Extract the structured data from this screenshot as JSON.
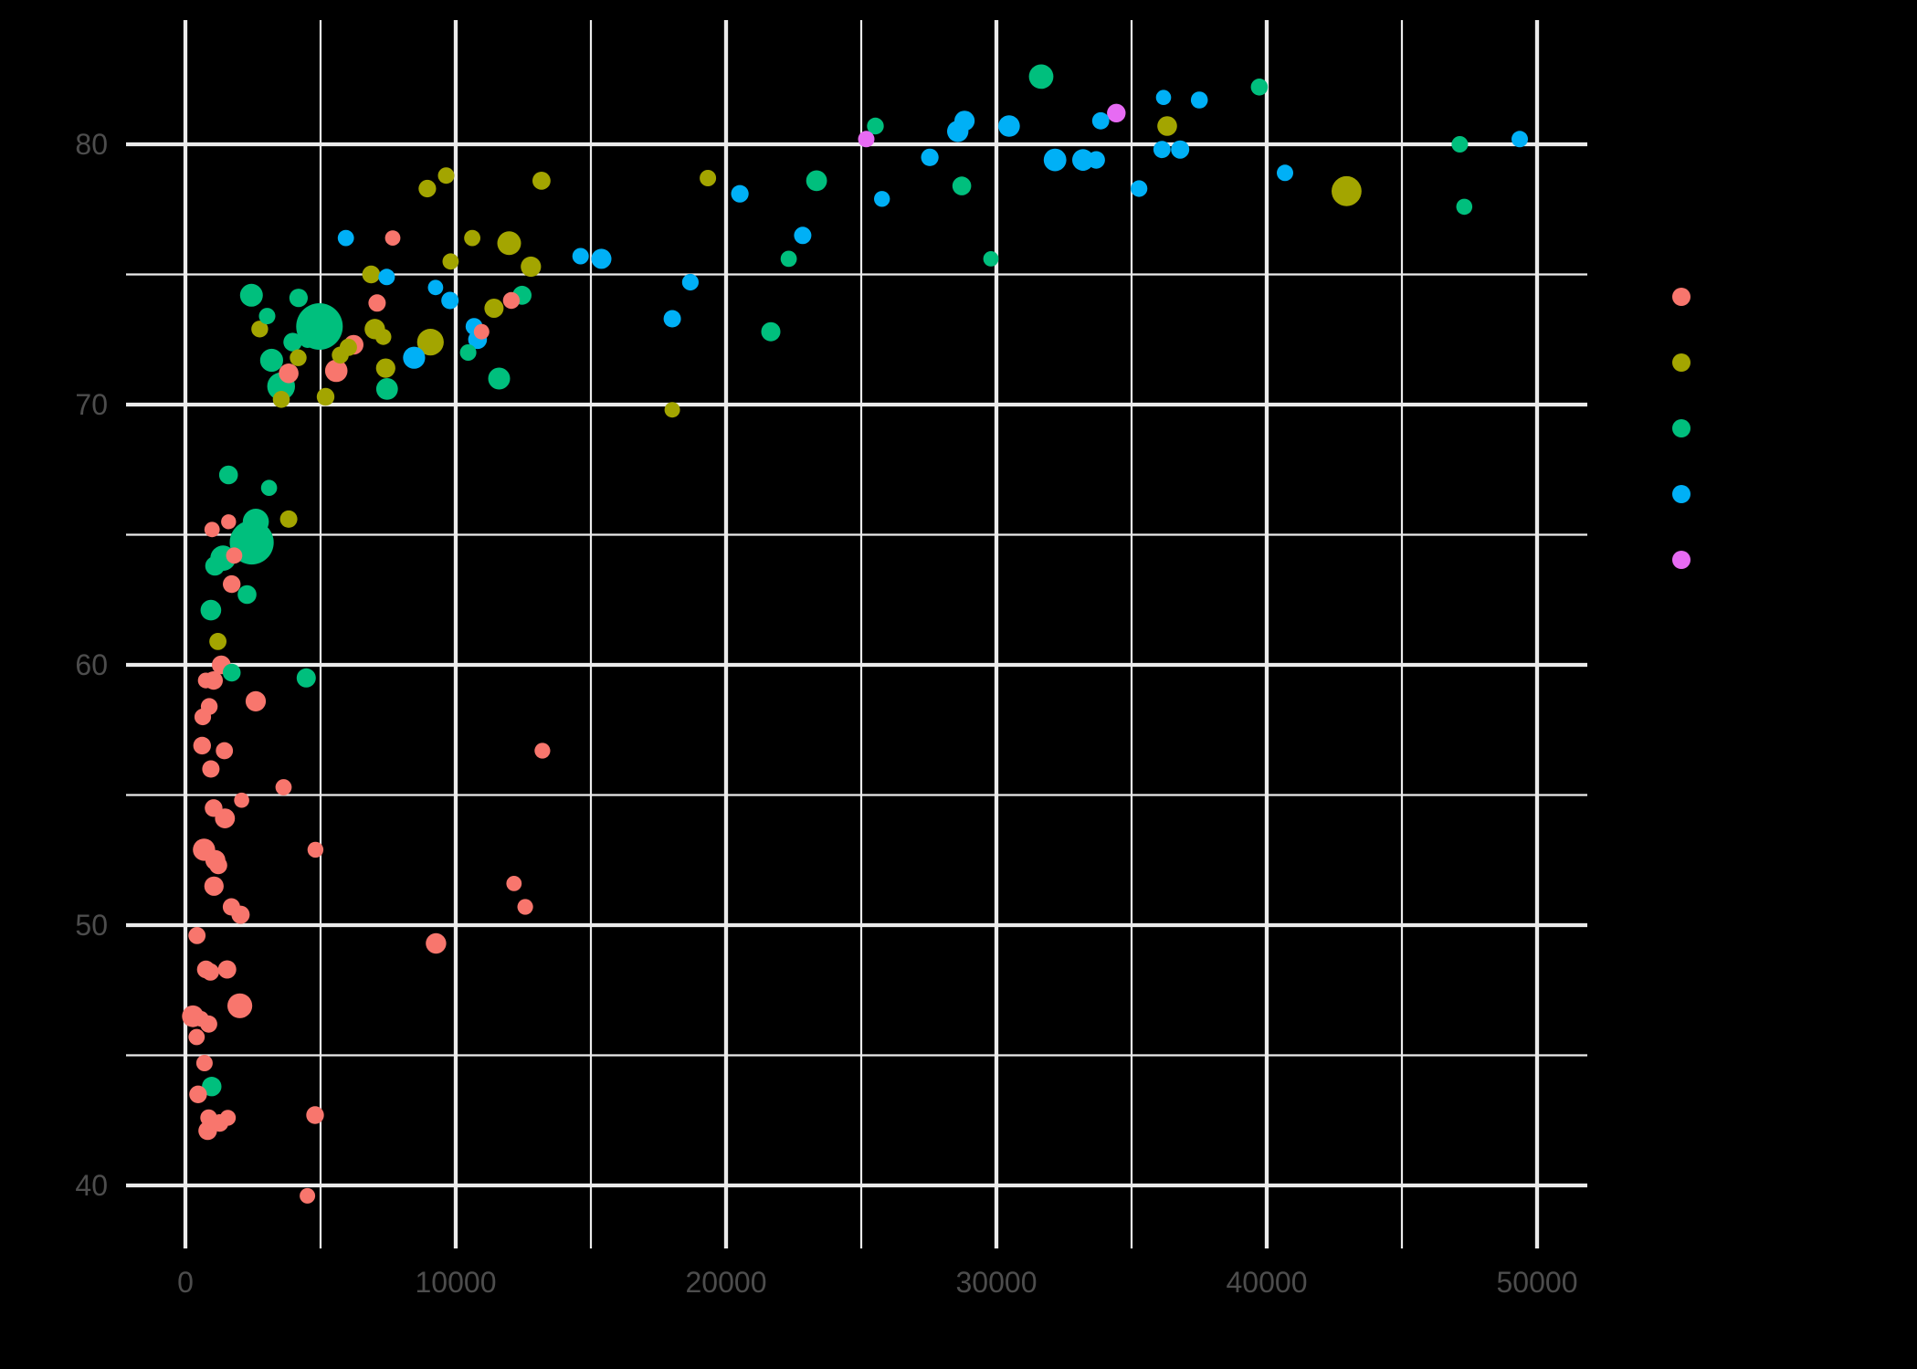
{
  "chart_data": {
    "type": "scatter",
    "title": "",
    "xlabel": "",
    "ylabel": "",
    "xlim": [
      -2200,
      51860
    ],
    "ylim": [
      37.5,
      84.8
    ],
    "x_ticks": [
      0,
      10000,
      20000,
      30000,
      40000,
      50000
    ],
    "x_tick_labels": [
      "0",
      "10000",
      "20000",
      "30000",
      "40000",
      "50000"
    ],
    "y_ticks": [
      40,
      50,
      60,
      70,
      80
    ],
    "y_tick_labels": [
      "40",
      "50",
      "60",
      "70",
      "80"
    ],
    "grid": true,
    "background": "#000000",
    "legend": {
      "position": "right",
      "title": "",
      "entries": [
        {
          "key": "Africa",
          "label": "",
          "color": "#F8766D"
        },
        {
          "key": "Americas",
          "label": "",
          "color": "#A3A500"
        },
        {
          "key": "Asia",
          "label": "",
          "color": "#00BF7D"
        },
        {
          "key": "Europe",
          "label": "",
          "color": "#00B0F6"
        },
        {
          "key": "Oceania",
          "label": "",
          "color": "#E76BF3"
        }
      ]
    },
    "encoding": {
      "x": "gdpPercap",
      "y": "lifeExp",
      "color": "continent",
      "size": "pop"
    },
    "points": [
      [
        "Asia",
        974.6,
        43.8,
        31.9
      ],
      [
        "Europe",
        5937.0,
        76.4,
        3.6
      ],
      [
        "Africa",
        6223.4,
        72.3,
        33.3
      ],
      [
        "Africa",
        4797.2,
        42.7,
        12.4
      ],
      [
        "Americas",
        12779.4,
        75.3,
        40.3
      ],
      [
        "Oceania",
        34435.4,
        81.2,
        20.4
      ],
      [
        "Europe",
        36126.5,
        79.8,
        8.2
      ],
      [
        "Asia",
        29796.0,
        75.6,
        0.7
      ],
      [
        "Asia",
        1391.3,
        64.1,
        150.4
      ],
      [
        "Europe",
        33692.6,
        79.4,
        10.4
      ],
      [
        "Africa",
        1441.3,
        56.7,
        8.1
      ],
      [
        "Americas",
        3822.1,
        65.6,
        9.1
      ],
      [
        "Europe",
        7446.3,
        74.9,
        4.6
      ],
      [
        "Africa",
        12569.9,
        50.7,
        1.6
      ],
      [
        "Americas",
        9065.8,
        72.4,
        190.0
      ],
      [
        "Europe",
        10680.2,
        73.0,
        7.3
      ],
      [
        "Africa",
        1217.0,
        52.3,
        14.3
      ],
      [
        "Africa",
        430.1,
        49.6,
        8.4
      ],
      [
        "Asia",
        1713.8,
        59.7,
        14.1
      ],
      [
        "Africa",
        2042.1,
        50.4,
        17.7
      ],
      [
        "Americas",
        36319.2,
        80.7,
        33.4
      ],
      [
        "Africa",
        706.0,
        44.7,
        4.4
      ],
      [
        "Africa",
        1704.1,
        50.7,
        10.2
      ],
      [
        "Americas",
        13171.6,
        78.6,
        16.3
      ],
      [
        "Asia",
        4959.1,
        73.0,
        1318.7
      ],
      [
        "Americas",
        7006.6,
        72.9,
        44.2
      ],
      [
        "Africa",
        986.1,
        65.2,
        0.7
      ],
      [
        "Africa",
        277.6,
        46.5,
        64.6
      ],
      [
        "Africa",
        3632.6,
        55.3,
        3.8
      ],
      [
        "Americas",
        9645.1,
        78.8,
        4.1
      ],
      [
        "Africa",
        1544.8,
        48.3,
        18.0
      ],
      [
        "Europe",
        14619.2,
        75.7,
        4.5
      ],
      [
        "Americas",
        8948.1,
        78.3,
        11.4
      ],
      [
        "Europe",
        22833.3,
        76.5,
        10.2
      ],
      [
        "Europe",
        35278.4,
        78.3,
        5.5
      ],
      [
        "Africa",
        2082.5,
        54.8,
        0.5
      ],
      [
        "Americas",
        6025.4,
        72.2,
        9.3
      ],
      [
        "Americas",
        6873.3,
        75.0,
        13.8
      ],
      [
        "Africa",
        5581.2,
        71.3,
        80.3
      ],
      [
        "Americas",
        5728.4,
        71.9,
        6.9
      ],
      [
        "Africa",
        12154.1,
        51.6,
        0.6
      ],
      [
        "Africa",
        641.4,
        58.0,
        4.9
      ],
      [
        "Africa",
        690.8,
        52.9,
        76.5
      ],
      [
        "Europe",
        33207.1,
        79.3,
        5.2
      ],
      [
        "Europe",
        30470.0,
        80.7,
        61.1
      ],
      [
        "Africa",
        13206.5,
        56.7,
        1.5
      ],
      [
        "Africa",
        752.7,
        59.4,
        1.7
      ],
      [
        "Europe",
        32170.4,
        79.4,
        82.4
      ],
      [
        "Africa",
        1327.6,
        60.0,
        22.9
      ],
      [
        "Europe",
        27538.4,
        79.5,
        10.7
      ],
      [
        "Americas",
        5186.1,
        70.3,
        12.6
      ],
      [
        "Africa",
        942.7,
        56.0,
        9.9
      ],
      [
        "Africa",
        579.2,
        46.4,
        1.5
      ],
      [
        "Americas",
        1201.6,
        60.9,
        8.5
      ],
      [
        "Americas",
        3548.3,
        70.2,
        7.5
      ],
      [
        "Asia",
        39724.98,
        82.2,
        7.0
      ],
      [
        "Europe",
        18008.9,
        73.3,
        10.0
      ],
      [
        "Europe",
        36181.0,
        81.8,
        0.3
      ],
      [
        "Asia",
        2452.2,
        64.7,
        1110.4
      ],
      [
        "Asia",
        3540.7,
        70.7,
        223.5
      ],
      [
        "Asia",
        11605.7,
        71.0,
        69.5
      ],
      [
        "Asia",
        4471.1,
        59.5,
        27.5
      ],
      [
        "Europe",
        40676.0,
        78.9,
        4.1
      ],
      [
        "Asia",
        25523.3,
        80.7,
        6.4
      ],
      [
        "Europe",
        28569.7,
        80.5,
        58.1
      ],
      [
        "Americas",
        7320.9,
        72.6,
        2.8
      ],
      [
        "Asia",
        31656.1,
        82.6,
        127.5
      ],
      [
        "Asia",
        4519.5,
        72.5,
        6.1
      ],
      [
        "Africa",
        1463.2,
        54.1,
        35.6
      ],
      [
        "Asia",
        1593.1,
        67.3,
        23.3
      ],
      [
        "Asia",
        23348.1,
        78.6,
        49.0
      ],
      [
        "Asia",
        47306.99,
        77.6,
        2.5
      ],
      [
        "Asia",
        10461.1,
        72.0,
        3.9
      ],
      [
        "Africa",
        1569.3,
        42.6,
        2.0
      ],
      [
        "Africa",
        414.5,
        45.7,
        3.2
      ],
      [
        "Africa",
        12057.5,
        74.0,
        6.0
      ],
      [
        "Africa",
        1044.8,
        59.4,
        19.2
      ],
      [
        "Africa",
        759.3,
        48.3,
        13.3
      ],
      [
        "Asia",
        12451.7,
        74.2,
        24.8
      ],
      [
        "Africa",
        1042.6,
        54.5,
        12.0
      ],
      [
        "Africa",
        1803.2,
        64.2,
        3.3
      ],
      [
        "Africa",
        10956.99,
        72.8,
        1.3
      ],
      [
        "Americas",
        11977.6,
        76.2,
        108.7
      ],
      [
        "Asia",
        3095.8,
        66.8,
        2.9
      ],
      [
        "Europe",
        9253.9,
        74.5,
        0.7
      ],
      [
        "Africa",
        3820.2,
        71.2,
        33.8
      ],
      [
        "Africa",
        824.0,
        42.1,
        20.0
      ],
      [
        "Asia",
        944.0,
        62.1,
        47.8
      ],
      [
        "Africa",
        4811.1,
        52.9,
        2.1
      ],
      [
        "Asia",
        1091.4,
        63.8,
        28.9
      ],
      [
        "Europe",
        36797.9,
        79.8,
        16.6
      ],
      [
        "Oceania",
        25185.0,
        80.2,
        4.1
      ],
      [
        "Americas",
        2749.3,
        72.9,
        5.7
      ],
      [
        "Africa",
        619.7,
        56.9,
        12.9
      ],
      [
        "Africa",
        2013.98,
        46.9,
        135.0
      ],
      [
        "Europe",
        49357.2,
        80.2,
        4.6
      ],
      [
        "Asia",
        22316.2,
        75.6,
        3.2
      ],
      [
        "Asia",
        2605.9,
        65.5,
        169.3
      ],
      [
        "Americas",
        9809.2,
        75.5,
        3.2
      ],
      [
        "Americas",
        4172.8,
        71.8,
        6.7
      ],
      [
        "Americas",
        7408.9,
        71.4,
        28.7
      ],
      [
        "Asia",
        3190.5,
        71.7,
        91.1
      ],
      [
        "Europe",
        15389.9,
        75.6,
        38.5
      ],
      [
        "Europe",
        20509.6,
        78.1,
        10.6
      ],
      [
        "Americas",
        19328.7,
        78.7,
        3.9
      ],
      [
        "Africa",
        7670.1,
        76.4,
        0.8
      ],
      [
        "Europe",
        10808.5,
        72.5,
        22.3
      ],
      [
        "Africa",
        863.1,
        46.2,
        8.9
      ],
      [
        "Africa",
        1598.4,
        65.5,
        0.2
      ],
      [
        "Asia",
        21654.8,
        72.8,
        27.6
      ],
      [
        "Africa",
        1712.5,
        63.1,
        12.3
      ],
      [
        "Europe",
        9786.5,
        74.0,
        10.2
      ],
      [
        "Africa",
        862.5,
        42.6,
        6.1
      ],
      [
        "Asia",
        47143.2,
        80.0,
        4.6
      ],
      [
        "Europe",
        18678.3,
        74.7,
        5.4
      ],
      [
        "Europe",
        25768.3,
        77.9,
        2.0
      ],
      [
        "Africa",
        926.1,
        48.2,
        9.1
      ],
      [
        "Africa",
        9269.7,
        49.3,
        44.0
      ],
      [
        "Europe",
        28821.1,
        80.9,
        40.4
      ],
      [
        "Asia",
        3970.1,
        72.4,
        20.4
      ],
      [
        "Africa",
        2602.4,
        58.6,
        42.3
      ],
      [
        "Africa",
        4513.5,
        39.6,
        1.1
      ],
      [
        "Europe",
        33859.7,
        80.9,
        9.0
      ],
      [
        "Europe",
        37506.4,
        81.7,
        7.6
      ],
      [
        "Asia",
        4184.5,
        74.1,
        19.3
      ],
      [
        "Asia",
        28718.3,
        78.4,
        23.2
      ],
      [
        "Africa",
        1107.5,
        52.5,
        38.1
      ],
      [
        "Asia",
        7458.4,
        70.6,
        65.1
      ],
      [
        "Africa",
        883.0,
        58.4,
        5.7
      ],
      [
        "Americas",
        18008.5,
        69.8,
        1.1
      ],
      [
        "Africa",
        7092.9,
        73.9,
        10.3
      ],
      [
        "Europe",
        8458.3,
        71.8,
        71.2
      ],
      [
        "Africa",
        1056.4,
        51.5,
        29.2
      ],
      [
        "Europe",
        33203.3,
        79.4,
        60.8
      ],
      [
        "Americas",
        42951.7,
        78.2,
        301.1
      ],
      [
        "Americas",
        10611.5,
        76.4,
        3.4
      ],
      [
        "Americas",
        11415.8,
        73.7,
        26.1
      ],
      [
        "Asia",
        2441.6,
        74.2,
        85.3
      ],
      [
        "Asia",
        3025.3,
        73.4,
        4.0
      ],
      [
        "Asia",
        2281.0,
        62.7,
        22.2
      ],
      [
        "Africa",
        1271.2,
        42.4,
        11.7
      ],
      [
        "Africa",
        469.7,
        43.5,
        12.3
      ]
    ]
  }
}
